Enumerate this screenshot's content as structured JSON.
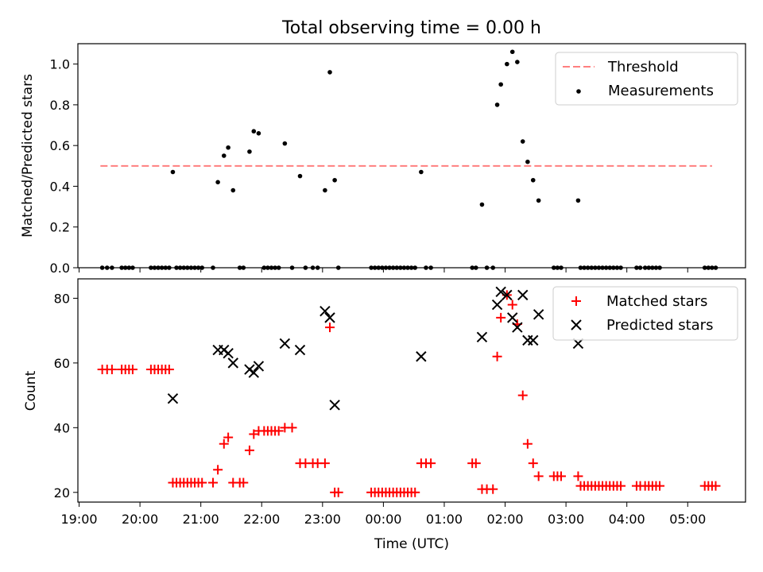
{
  "figure": {
    "title": "Total observing time = 0.00 h",
    "xlabel": "Time (UTC)"
  },
  "chart_data": [
    {
      "type": "scatter",
      "ylabel": "Matched/Predicted stars",
      "xlim": [
        18.98,
        29.95
      ],
      "ylim": [
        0,
        1.1
      ],
      "yticks": [
        0.0,
        0.2,
        0.4,
        0.6,
        0.8,
        1.0
      ],
      "ytick_labels": [
        "0.0",
        "0.2",
        "0.4",
        "0.6",
        "0.8",
        "1.0"
      ],
      "legend_position": "upper-right",
      "threshold": {
        "name": "Threshold",
        "value": 0.5,
        "x_range": [
          19.35,
          29.4
        ],
        "color": "#ff7f7f",
        "style": "dashed"
      },
      "measurements": {
        "name": "Measurements",
        "color": "#000000",
        "points": [
          [
            19.38,
            0
          ],
          [
            19.46,
            0
          ],
          [
            19.54,
            0
          ],
          [
            19.7,
            0
          ],
          [
            19.76,
            0
          ],
          [
            19.82,
            0
          ],
          [
            19.88,
            0
          ],
          [
            20.18,
            0
          ],
          [
            20.24,
            0
          ],
          [
            20.3,
            0
          ],
          [
            20.36,
            0
          ],
          [
            20.42,
            0
          ],
          [
            20.48,
            0
          ],
          [
            20.54,
            0.47
          ],
          [
            20.6,
            0
          ],
          [
            20.66,
            0
          ],
          [
            20.72,
            0
          ],
          [
            20.78,
            0
          ],
          [
            20.84,
            0
          ],
          [
            20.9,
            0
          ],
          [
            20.96,
            0
          ],
          [
            21.02,
            0
          ],
          [
            21.2,
            0
          ],
          [
            21.28,
            0.42
          ],
          [
            21.38,
            0.55
          ],
          [
            21.45,
            0.59
          ],
          [
            21.53,
            0.38
          ],
          [
            21.64,
            0
          ],
          [
            21.7,
            0
          ],
          [
            21.8,
            0.57
          ],
          [
            21.87,
            0.67
          ],
          [
            21.95,
            0.66
          ],
          [
            22.04,
            0
          ],
          [
            22.1,
            0
          ],
          [
            22.16,
            0
          ],
          [
            22.22,
            0
          ],
          [
            22.28,
            0
          ],
          [
            22.38,
            0.61
          ],
          [
            22.5,
            0
          ],
          [
            22.63,
            0.45
          ],
          [
            22.72,
            0
          ],
          [
            22.84,
            0
          ],
          [
            22.92,
            0
          ],
          [
            23.04,
            0.38
          ],
          [
            23.12,
            0.96
          ],
          [
            23.2,
            0.43
          ],
          [
            23.26,
            0
          ],
          [
            23.8,
            0
          ],
          [
            23.86,
            0
          ],
          [
            23.92,
            0
          ],
          [
            23.98,
            0
          ],
          [
            24.04,
            0
          ],
          [
            24.1,
            0
          ],
          [
            24.16,
            0
          ],
          [
            24.22,
            0
          ],
          [
            24.28,
            0
          ],
          [
            24.34,
            0
          ],
          [
            24.4,
            0
          ],
          [
            24.46,
            0
          ],
          [
            24.52,
            0
          ],
          [
            24.62,
            0.47
          ],
          [
            24.7,
            0
          ],
          [
            24.78,
            0
          ],
          [
            25.46,
            0
          ],
          [
            25.52,
            0
          ],
          [
            25.62,
            0.31
          ],
          [
            25.7,
            0
          ],
          [
            25.8,
            0
          ],
          [
            25.87,
            0.8
          ],
          [
            25.93,
            0.9
          ],
          [
            26.03,
            1.0
          ],
          [
            26.12,
            1.06
          ],
          [
            26.2,
            1.01
          ],
          [
            26.29,
            0.62
          ],
          [
            26.37,
            0.52
          ],
          [
            26.46,
            0.43
          ],
          [
            26.55,
            0.33
          ],
          [
            26.8,
            0
          ],
          [
            26.86,
            0
          ],
          [
            26.92,
            0
          ],
          [
            27.2,
            0.33
          ],
          [
            27.24,
            0
          ],
          [
            27.3,
            0
          ],
          [
            27.36,
            0
          ],
          [
            27.42,
            0
          ],
          [
            27.48,
            0
          ],
          [
            27.54,
            0
          ],
          [
            27.6,
            0
          ],
          [
            27.66,
            0
          ],
          [
            27.72,
            0
          ],
          [
            27.78,
            0
          ],
          [
            27.84,
            0
          ],
          [
            27.9,
            0
          ],
          [
            28.16,
            0
          ],
          [
            28.22,
            0
          ],
          [
            28.3,
            0
          ],
          [
            28.36,
            0
          ],
          [
            28.42,
            0
          ],
          [
            28.48,
            0
          ],
          [
            28.54,
            0
          ],
          [
            29.28,
            0
          ],
          [
            29.34,
            0
          ],
          [
            29.4,
            0
          ],
          [
            29.46,
            0
          ]
        ]
      }
    },
    {
      "type": "scatter",
      "ylabel": "Count",
      "xlim": [
        18.98,
        29.95
      ],
      "ylim": [
        17,
        86
      ],
      "yticks": [
        20,
        40,
        60,
        80
      ],
      "ytick_labels": [
        "20",
        "40",
        "60",
        "80"
      ],
      "xticks": [
        19,
        20,
        21,
        22,
        23,
        24,
        25,
        26,
        27,
        28,
        29
      ],
      "xtick_labels": [
        "19:00",
        "20:00",
        "21:00",
        "22:00",
        "23:00",
        "00:00",
        "01:00",
        "02:00",
        "03:00",
        "04:00",
        "05:00"
      ],
      "legend_position": "upper-right",
      "series": [
        {
          "name": "Matched stars",
          "marker": "plus",
          "color": "#ff0000",
          "points": [
            [
              19.38,
              58
            ],
            [
              19.46,
              58
            ],
            [
              19.54,
              58
            ],
            [
              19.7,
              58
            ],
            [
              19.76,
              58
            ],
            [
              19.82,
              58
            ],
            [
              19.88,
              58
            ],
            [
              20.18,
              58
            ],
            [
              20.24,
              58
            ],
            [
              20.3,
              58
            ],
            [
              20.36,
              58
            ],
            [
              20.42,
              58
            ],
            [
              20.48,
              58
            ],
            [
              20.54,
              23
            ],
            [
              20.6,
              23
            ],
            [
              20.66,
              23
            ],
            [
              20.72,
              23
            ],
            [
              20.78,
              23
            ],
            [
              20.84,
              23
            ],
            [
              20.9,
              23
            ],
            [
              20.96,
              23
            ],
            [
              21.02,
              23
            ],
            [
              21.2,
              23
            ],
            [
              21.28,
              27
            ],
            [
              21.38,
              35
            ],
            [
              21.45,
              37
            ],
            [
              21.53,
              23
            ],
            [
              21.64,
              23
            ],
            [
              21.7,
              23
            ],
            [
              21.8,
              33
            ],
            [
              21.87,
              38
            ],
            [
              21.95,
              39
            ],
            [
              22.04,
              39
            ],
            [
              22.1,
              39
            ],
            [
              22.16,
              39
            ],
            [
              22.22,
              39
            ],
            [
              22.28,
              39
            ],
            [
              22.38,
              40
            ],
            [
              22.5,
              40
            ],
            [
              22.63,
              29
            ],
            [
              22.72,
              29
            ],
            [
              22.84,
              29
            ],
            [
              22.92,
              29
            ],
            [
              23.04,
              29
            ],
            [
              23.12,
              71
            ],
            [
              23.2,
              20
            ],
            [
              23.26,
              20
            ],
            [
              23.8,
              20
            ],
            [
              23.86,
              20
            ],
            [
              23.92,
              20
            ],
            [
              23.98,
              20
            ],
            [
              24.04,
              20
            ],
            [
              24.1,
              20
            ],
            [
              24.16,
              20
            ],
            [
              24.22,
              20
            ],
            [
              24.28,
              20
            ],
            [
              24.34,
              20
            ],
            [
              24.4,
              20
            ],
            [
              24.46,
              20
            ],
            [
              24.52,
              20
            ],
            [
              24.62,
              29
            ],
            [
              24.7,
              29
            ],
            [
              24.78,
              29
            ],
            [
              25.46,
              29
            ],
            [
              25.52,
              29
            ],
            [
              25.62,
              21
            ],
            [
              25.7,
              21
            ],
            [
              25.8,
              21
            ],
            [
              25.87,
              62
            ],
            [
              25.93,
              74
            ],
            [
              26.03,
              81
            ],
            [
              26.12,
              78
            ],
            [
              26.2,
              72
            ],
            [
              26.29,
              50
            ],
            [
              26.37,
              35
            ],
            [
              26.46,
              29
            ],
            [
              26.55,
              25
            ],
            [
              26.8,
              25
            ],
            [
              26.86,
              25
            ],
            [
              26.92,
              25
            ],
            [
              27.2,
              25
            ],
            [
              27.24,
              22
            ],
            [
              27.3,
              22
            ],
            [
              27.36,
              22
            ],
            [
              27.42,
              22
            ],
            [
              27.48,
              22
            ],
            [
              27.54,
              22
            ],
            [
              27.6,
              22
            ],
            [
              27.66,
              22
            ],
            [
              27.72,
              22
            ],
            [
              27.78,
              22
            ],
            [
              27.84,
              22
            ],
            [
              27.9,
              22
            ],
            [
              28.16,
              22
            ],
            [
              28.22,
              22
            ],
            [
              28.3,
              22
            ],
            [
              28.36,
              22
            ],
            [
              28.42,
              22
            ],
            [
              28.48,
              22
            ],
            [
              28.54,
              22
            ],
            [
              29.28,
              22
            ],
            [
              29.34,
              22
            ],
            [
              29.4,
              22
            ],
            [
              29.46,
              22
            ]
          ]
        },
        {
          "name": "Predicted stars",
          "marker": "x",
          "color": "#000000",
          "points": [
            [
              20.54,
              49
            ],
            [
              21.28,
              64
            ],
            [
              21.38,
              64
            ],
            [
              21.45,
              63
            ],
            [
              21.53,
              60
            ],
            [
              21.8,
              58
            ],
            [
              21.87,
              57
            ],
            [
              21.95,
              59
            ],
            [
              22.38,
              66
            ],
            [
              22.63,
              64
            ],
            [
              23.04,
              76
            ],
            [
              23.12,
              74
            ],
            [
              23.2,
              47
            ],
            [
              24.62,
              62
            ],
            [
              25.62,
              68
            ],
            [
              25.87,
              78
            ],
            [
              25.93,
              82
            ],
            [
              26.03,
              81
            ],
            [
              26.12,
              74
            ],
            [
              26.2,
              71
            ],
            [
              26.29,
              81
            ],
            [
              26.37,
              67
            ],
            [
              26.46,
              67
            ],
            [
              26.55,
              75
            ],
            [
              27.2,
              66
            ]
          ]
        }
      ]
    }
  ]
}
